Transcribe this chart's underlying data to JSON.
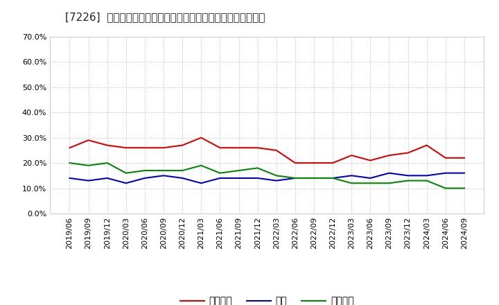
{
  "title": "[7226]  売上債権、在庫、買入債務の総資産に対する比率の推移",
  "x_labels": [
    "2019/06",
    "2019/09",
    "2019/12",
    "2020/03",
    "2020/06",
    "2020/09",
    "2020/12",
    "2021/03",
    "2021/06",
    "2021/09",
    "2021/12",
    "2022/03",
    "2022/06",
    "2022/09",
    "2022/12",
    "2023/03",
    "2023/06",
    "2023/09",
    "2023/12",
    "2024/03",
    "2024/06",
    "2024/09"
  ],
  "urikake": [
    0.26,
    0.29,
    0.27,
    0.26,
    0.26,
    0.26,
    0.27,
    0.3,
    0.26,
    0.26,
    0.26,
    0.25,
    0.2,
    0.2,
    0.2,
    0.23,
    0.21,
    0.23,
    0.24,
    0.27,
    0.22,
    0.22
  ],
  "zaiko": [
    0.14,
    0.13,
    0.14,
    0.12,
    0.14,
    0.15,
    0.14,
    0.12,
    0.14,
    0.14,
    0.14,
    0.13,
    0.14,
    0.14,
    0.14,
    0.15,
    0.14,
    0.16,
    0.15,
    0.15,
    0.16,
    0.16
  ],
  "kaiire": [
    0.2,
    0.19,
    0.2,
    0.16,
    0.17,
    0.17,
    0.17,
    0.19,
    0.16,
    0.17,
    0.18,
    0.15,
    0.14,
    0.14,
    0.14,
    0.12,
    0.12,
    0.12,
    0.13,
    0.13,
    0.1,
    0.1
  ],
  "urikake_color": "#dd0000",
  "zaiko_color": "#0000cc",
  "kaiire_color": "#008800",
  "ylim": [
    0.0,
    0.7
  ],
  "yticks": [
    0.0,
    0.1,
    0.2,
    0.3,
    0.4,
    0.5,
    0.6,
    0.7
  ],
  "legend_labels": [
    "売上債権",
    "在庫",
    "買入債務"
  ],
  "bg_color": "#ffffff",
  "plot_bg_color": "#ffffff",
  "grid_color": "#aaaaaa",
  "title_fontsize": 11,
  "tick_fontsize": 8,
  "legend_fontsize": 10
}
